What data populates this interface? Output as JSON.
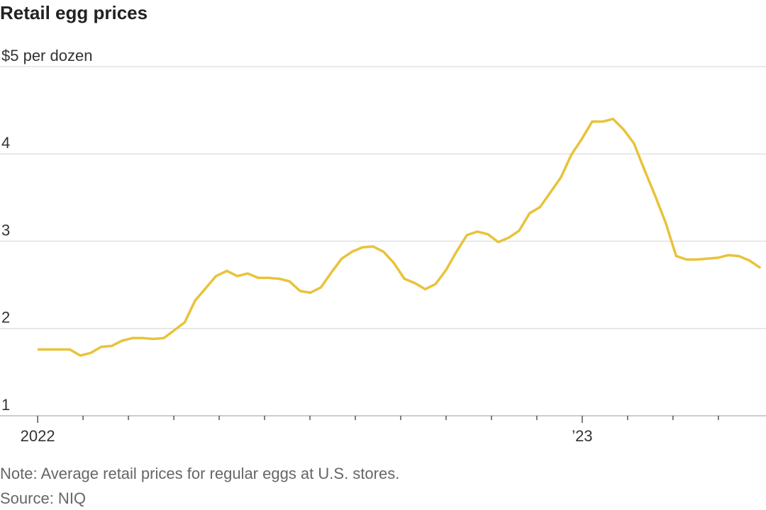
{
  "chart_data": {
    "type": "line",
    "title": "Retail egg prices",
    "note": "Note: Average retail prices for regular eggs at U.S. stores.",
    "source": "Source: NIQ",
    "color": "#e8c33a",
    "x": [
      0.02,
      0.25,
      0.48,
      0.71,
      0.94,
      1.17,
      1.4,
      1.63,
      1.86,
      2.09,
      2.32,
      2.55,
      2.78,
      3.01,
      3.24,
      3.47,
      3.7,
      3.93,
      4.17,
      4.4,
      4.63,
      4.86,
      5.09,
      5.32,
      5.55,
      5.78,
      6.01,
      6.24,
      6.47,
      6.7,
      6.93,
      7.16,
      7.39,
      7.62,
      7.85,
      8.08,
      8.31,
      8.54,
      8.77,
      9.0,
      9.23,
      9.46,
      9.69,
      9.92,
      10.15,
      10.38,
      10.61,
      10.84,
      11.07,
      11.3,
      11.53,
      11.76,
      11.99,
      12.22,
      12.45,
      12.68,
      12.91,
      13.14,
      13.37,
      13.6,
      13.84,
      14.07,
      14.3,
      14.53,
      14.76,
      14.99,
      15.22,
      15.45,
      15.68,
      15.91
    ],
    "values": [
      1.76,
      1.76,
      1.76,
      1.76,
      1.69,
      1.72,
      1.79,
      1.8,
      1.86,
      1.89,
      1.89,
      1.88,
      1.89,
      1.98,
      2.07,
      2.32,
      2.46,
      2.6,
      2.66,
      2.6,
      2.63,
      2.58,
      2.58,
      2.57,
      2.54,
      2.43,
      2.41,
      2.47,
      2.64,
      2.8,
      2.88,
      2.93,
      2.94,
      2.88,
      2.75,
      2.57,
      2.52,
      2.45,
      2.51,
      2.67,
      2.88,
      3.07,
      3.11,
      3.08,
      2.99,
      3.04,
      3.12,
      3.32,
      3.39,
      3.56,
      3.73,
      3.99,
      4.17,
      4.37,
      4.37,
      4.4,
      4.28,
      4.12,
      3.82,
      3.53,
      3.21,
      2.83,
      2.79,
      2.79,
      2.8,
      2.81,
      2.84,
      2.83,
      2.78,
      2.7
    ],
    "xlim": [
      -0.83,
      16.05
    ],
    "xticks": [
      {
        "value": 0,
        "label": "2022"
      },
      {
        "value": 12,
        "label": "’23"
      }
    ],
    "xminorticks": [
      1,
      2,
      3,
      4,
      5,
      6,
      7,
      8,
      9,
      10,
      11,
      13,
      14,
      15
    ],
    "ylim": [
      1,
      5
    ],
    "yticks": [
      {
        "value": 5,
        "label": "$5 per dozen"
      },
      4,
      3,
      2,
      1
    ],
    "grid": true
  }
}
